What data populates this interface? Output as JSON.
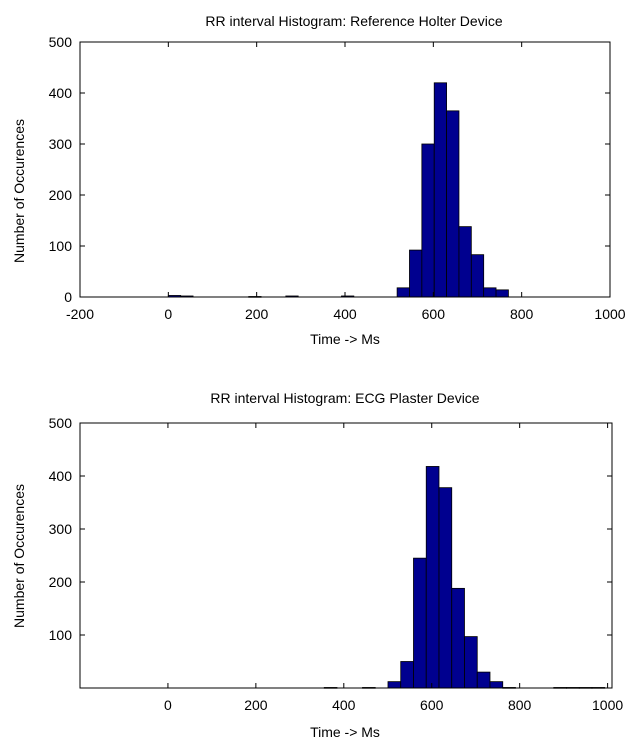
{
  "chart_data": [
    {
      "type": "bar",
      "title": "RR interval Histogram: Reference Holter Device",
      "xlabel": "Time -> Ms",
      "ylabel": "Number of Occurences",
      "xlim": [
        -200,
        1000
      ],
      "ylim": [
        0,
        500
      ],
      "xticks": [
        -200,
        0,
        200,
        400,
        600,
        800,
        1000
      ],
      "yticks": [
        0,
        100,
        200,
        300,
        400,
        500
      ],
      "bin_width": 28,
      "bars": [
        {
          "x": 14,
          "y": 3
        },
        {
          "x": 42,
          "y": 2
        },
        {
          "x": 196,
          "y": 1
        },
        {
          "x": 280,
          "y": 2
        },
        {
          "x": 406,
          "y": 2
        },
        {
          "x": 532,
          "y": 18
        },
        {
          "x": 560,
          "y": 92
        },
        {
          "x": 588,
          "y": 300
        },
        {
          "x": 616,
          "y": 420
        },
        {
          "x": 644,
          "y": 365
        },
        {
          "x": 672,
          "y": 138
        },
        {
          "x": 700,
          "y": 83
        },
        {
          "x": 728,
          "y": 18
        },
        {
          "x": 756,
          "y": 14
        }
      ],
      "bar_color": "#00008f"
    },
    {
      "type": "bar",
      "title": "RR interval Histogram: ECG Plaster Device",
      "xlabel": "Time -> Ms",
      "ylabel": "Number of Occurences",
      "xlim": [
        -200,
        1010
      ],
      "ylim": [
        0,
        500
      ],
      "xticks": [
        0,
        200,
        400,
        600,
        800,
        1000
      ],
      "yticks": [
        100,
        200,
        300,
        400,
        500
      ],
      "bin_width": 29,
      "bars": [
        {
          "x": 370,
          "y": 1
        },
        {
          "x": 457,
          "y": 1
        },
        {
          "x": 515,
          "y": 12
        },
        {
          "x": 544,
          "y": 50
        },
        {
          "x": 573,
          "y": 245
        },
        {
          "x": 602,
          "y": 418
        },
        {
          "x": 631,
          "y": 378
        },
        {
          "x": 660,
          "y": 188
        },
        {
          "x": 689,
          "y": 97
        },
        {
          "x": 718,
          "y": 30
        },
        {
          "x": 747,
          "y": 12
        },
        {
          "x": 776,
          "y": 1
        },
        {
          "x": 892,
          "y": 1
        },
        {
          "x": 921,
          "y": 1
        },
        {
          "x": 950,
          "y": 1
        },
        {
          "x": 979,
          "y": 1
        }
      ],
      "bar_color": "#00008f"
    }
  ]
}
